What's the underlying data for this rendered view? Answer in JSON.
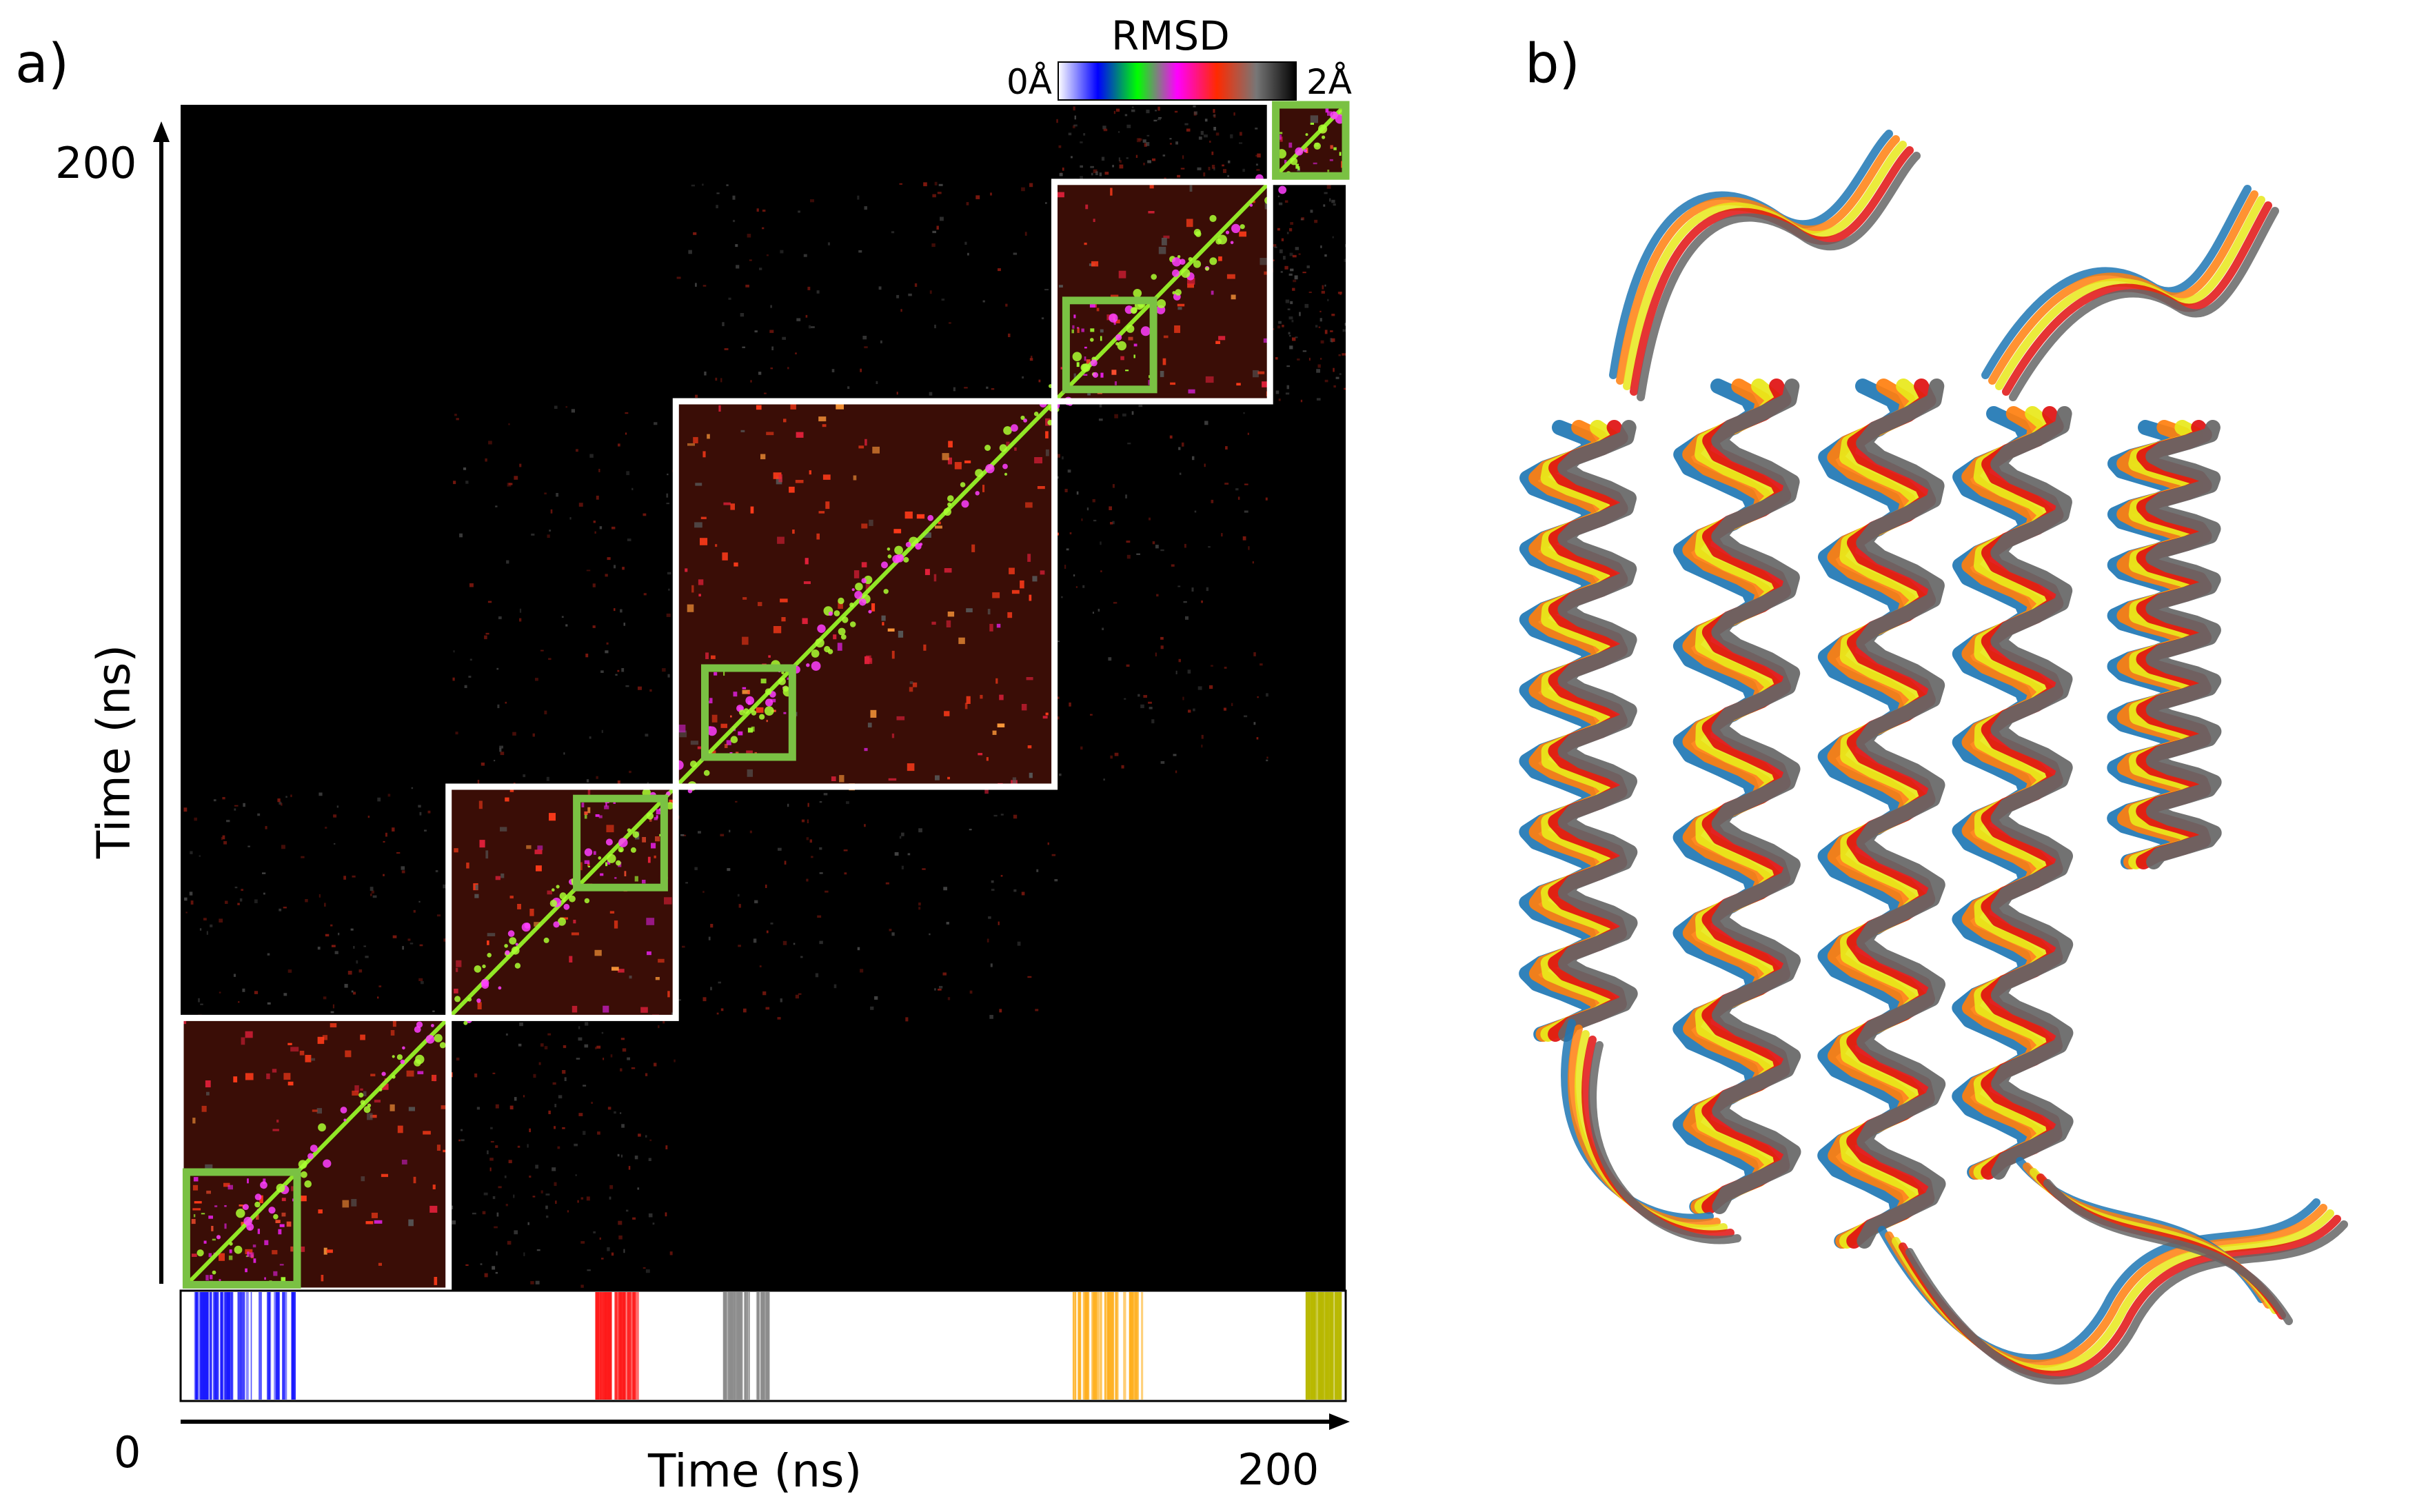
{
  "figure": {
    "panel_a_label": "a)",
    "panel_b_label": "b)"
  },
  "colorbar": {
    "title": "RMSD",
    "min_label": "0Å",
    "max_label": "2Å",
    "range": [
      0,
      2
    ],
    "stops": [
      "#ffffff",
      "#0000ff",
      "#00ff00",
      "#ff00ff",
      "#ff2a00",
      "#777777",
      "#000000"
    ]
  },
  "chart_data": {
    "type": "heatmap",
    "xlabel": "Time (ns)",
    "ylabel": "Time (ns)",
    "xlim": [
      0,
      200
    ],
    "ylim": [
      0,
      200
    ],
    "x_tick_labels": [
      "0",
      "200"
    ],
    "y_tick_labels": [
      "200"
    ],
    "value_range": [
      0,
      2
    ],
    "clusters": [
      {
        "start": 0,
        "end": 46,
        "core_start": 1,
        "core_end": 20,
        "band_color": "#1a1aff",
        "band_start": 1,
        "band_end": 19
      },
      {
        "start": 46,
        "end": 85,
        "core_start": 68,
        "core_end": 83,
        "band_color": "#ff1a1a",
        "band_start": 71,
        "band_end": 78
      },
      {
        "start": 85,
        "end": 150,
        "core_start": 90,
        "core_end": 105,
        "band_color": "#8c8c8c",
        "band_start": 93,
        "band_end": 101
      },
      {
        "start": 150,
        "end": 187,
        "core_start": 152,
        "core_end": 167,
        "band_color": "#ffb020",
        "band_start": 153,
        "band_end": 165
      },
      {
        "start": 187,
        "end": 200,
        "core_start": 188,
        "core_end": 200,
        "band_color": "#b8b800",
        "band_start": 193,
        "band_end": 199
      }
    ]
  },
  "structure_panel": {
    "colors": [
      "#1f77b4",
      "#ff7f0e",
      "#e8e81a",
      "#e01010",
      "#666666"
    ]
  }
}
